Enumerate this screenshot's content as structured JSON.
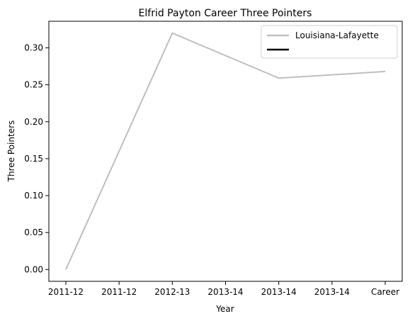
{
  "chart_data": {
    "type": "line",
    "title": "Elfrid Payton  Career Three Pointers",
    "xlabel": "Year",
    "ylabel": "Three Pointers",
    "categories": [
      "2011-12",
      "2011-12",
      "2012-13",
      "2013-14",
      "2013-14",
      "2013-14",
      "Career"
    ],
    "x_positions": [
      0,
      1,
      2,
      3,
      4,
      5,
      6
    ],
    "ylim": [
      -0.016,
      0.336
    ],
    "yticks": [
      0.0,
      0.05,
      0.1,
      0.15,
      0.2,
      0.25,
      0.3
    ],
    "ytick_labels": [
      "0.00",
      "0.05",
      "0.10",
      "0.15",
      "0.20",
      "0.25",
      "0.30"
    ],
    "grid": false,
    "legend_position": "top-right",
    "series": [
      {
        "name": "Louisiana-Lafayette",
        "color": "#bfbfbf",
        "x": [
          0,
          2,
          4,
          6
        ],
        "values": [
          0.0,
          0.32,
          0.259,
          0.268
        ]
      },
      {
        "name": "",
        "color": "#000000",
        "x": [],
        "values": []
      }
    ]
  }
}
